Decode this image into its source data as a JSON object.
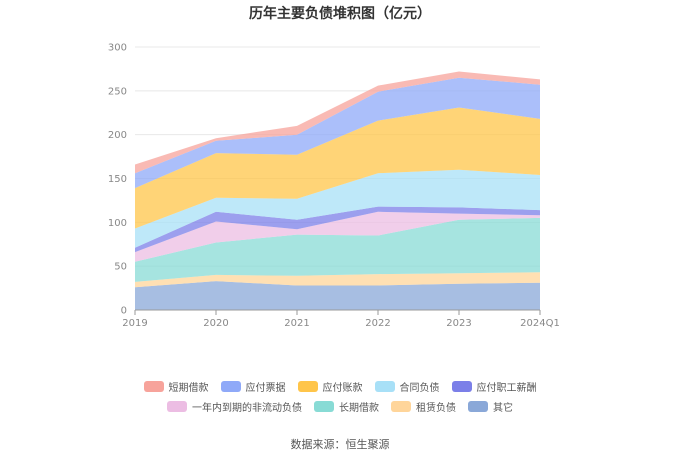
{
  "source_note": "数据来源：恒生聚源",
  "chart_data": {
    "type": "area",
    "stacked": true,
    "title": "历年主要负债堆积图（亿元）",
    "categories": [
      "2019",
      "2020",
      "2021",
      "2022",
      "2023",
      "2024Q1"
    ],
    "ylim": [
      0,
      300
    ],
    "yticks": [
      0,
      50,
      100,
      150,
      200,
      250,
      300
    ],
    "grid": true,
    "legend_position": "bottom",
    "series": [
      {
        "name": "其它",
        "color": "#8aa8d8",
        "values": [
          26,
          33,
          28,
          28,
          30,
          31
        ]
      },
      {
        "name": "租赁负债",
        "color": "#ffd59a",
        "values": [
          6,
          7,
          11,
          13,
          12,
          12
        ]
      },
      {
        "name": "长期借款",
        "color": "#88dbd5",
        "values": [
          23,
          37,
          47,
          44,
          61,
          62
        ]
      },
      {
        "name": "一年内到期的非流动负债",
        "color": "#ecbde3",
        "values": [
          11,
          24,
          6,
          27,
          7,
          3
        ]
      },
      {
        "name": "应付职工薪酬",
        "color": "#7b7fe8",
        "values": [
          5,
          11,
          11,
          6,
          7,
          6
        ]
      },
      {
        "name": "合同负债",
        "color": "#a8e0f7",
        "values": [
          22,
          16,
          24,
          38,
          43,
          40
        ]
      },
      {
        "name": "应付账款",
        "color": "#ffc54a",
        "values": [
          46,
          51,
          50,
          60,
          71,
          64
        ]
      },
      {
        "name": "应付票据",
        "color": "#8fa9f8",
        "values": [
          17,
          14,
          23,
          33,
          34,
          39
        ]
      },
      {
        "name": "短期借款",
        "color": "#f7a39b",
        "values": [
          10,
          3,
          10,
          7,
          7,
          6
        ]
      }
    ]
  },
  "legend_rows": [
    [
      {
        "label": "短期借款",
        "color": "#f7a39b"
      },
      {
        "label": "应付票据",
        "color": "#8fa9f8"
      },
      {
        "label": "应付账款",
        "color": "#ffc54a"
      },
      {
        "label": "合同负债",
        "color": "#a8e0f7"
      },
      {
        "label": "应付职工薪酬",
        "color": "#7b7fe8"
      }
    ],
    [
      {
        "label": "一年内到期的非流动负债",
        "color": "#ecbde3"
      },
      {
        "label": "长期借款",
        "color": "#88dbd5"
      },
      {
        "label": "租赁负债",
        "color": "#ffd59a"
      },
      {
        "label": "其它",
        "color": "#8aa8d8"
      }
    ]
  ]
}
